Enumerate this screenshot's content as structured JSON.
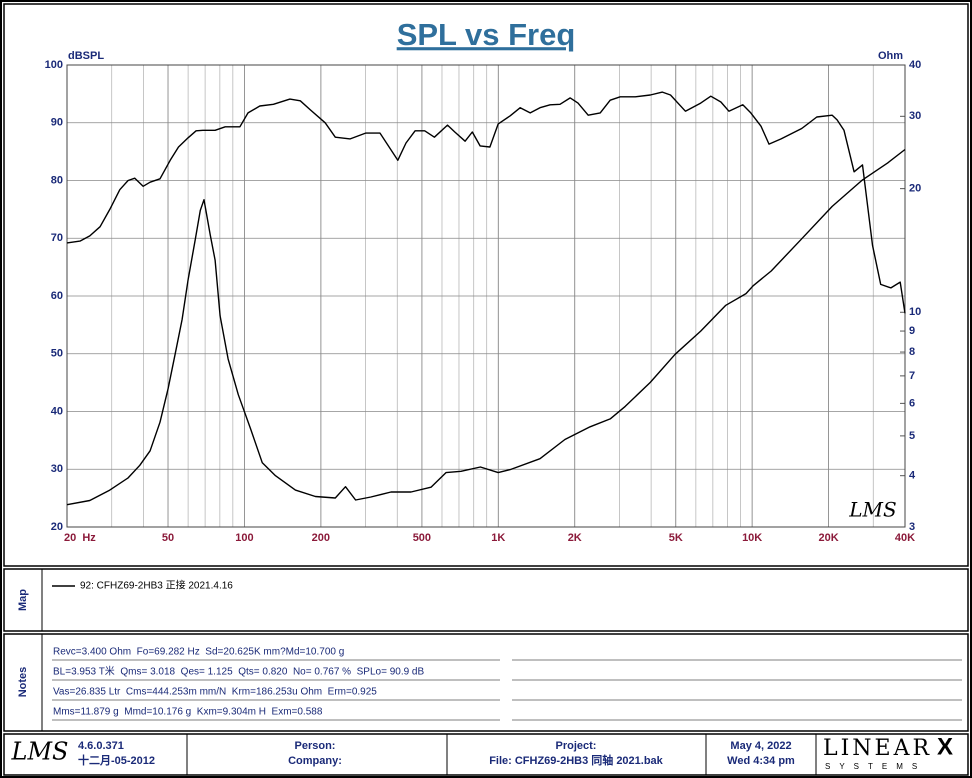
{
  "chart_data": {
    "type": "line",
    "title": "SPL vs Freq",
    "ylabel": "dBSPL",
    "y2label": "Ohm",
    "annotation": "LMS",
    "xscale": "log",
    "y2scale": "log",
    "grid": true,
    "xlim": [
      20,
      40000
    ],
    "xticks": [
      {
        "value": 20,
        "label": "20  Hz"
      },
      50,
      100,
      200,
      500,
      {
        "value": 1000,
        "label": "1K"
      },
      {
        "value": 2000,
        "label": "2K"
      },
      {
        "value": 5000,
        "label": "5K"
      },
      {
        "value": 10000,
        "label": "10K"
      },
      {
        "value": 20000,
        "label": "20K"
      },
      {
        "value": 40000,
        "label": "40K"
      }
    ],
    "ylim": [
      20,
      100
    ],
    "yticks": [
      20,
      30,
      40,
      50,
      60,
      70,
      80,
      90,
      100
    ],
    "y2lim": [
      3,
      40
    ],
    "y2ticks": [
      3,
      4,
      5,
      6,
      7,
      8,
      9,
      10,
      20,
      30,
      40
    ],
    "series": [
      {
        "color": "#000000",
        "axis": "y",
        "x": [
          20,
          22.5,
          24.6,
          27,
          29.5,
          32.3,
          34.8,
          37,
          39.9,
          42.5,
          46.5,
          51,
          55,
          60,
          64.5,
          68.6,
          76.6,
          84,
          96,
          103.3,
          115,
          130,
          151,
          166,
          182,
          208,
          228,
          261,
          300,
          342,
          402,
          433,
          470,
          513,
          560,
          631,
          674,
          740,
          790,
          848,
          927,
          999,
          1114,
          1220,
          1336,
          1460,
          1600,
          1750,
          1920,
          2060,
          2260,
          2520,
          2760,
          3020,
          3465,
          3970,
          4430,
          4770,
          5460,
          6270,
          6870,
          7530,
          8100,
          9190,
          9880,
          10830,
          11650,
          13000,
          15670,
          17980,
          20660,
          21600,
          23000,
          25200,
          27200,
          29800,
          32100,
          35200,
          38300,
          40000
        ],
        "values": [
          69.2,
          69.5,
          70.4,
          72,
          75,
          78.4,
          80,
          80.4,
          79,
          79.7,
          80.3,
          83.5,
          85.8,
          87.4,
          88.6,
          88.7,
          88.7,
          89.3,
          89.3,
          91.7,
          92.9,
          93.2,
          94.1,
          93.8,
          92.2,
          90,
          87.5,
          87.2,
          88.2,
          88.2,
          83.5,
          86.5,
          88.6,
          88.6,
          87.5,
          89.6,
          88.4,
          86.8,
          88.4,
          86,
          85.8,
          89.8,
          91.2,
          92.6,
          91.7,
          92.6,
          93.1,
          93.2,
          94.3,
          93.4,
          91.3,
          91.7,
          93.9,
          94.5,
          94.5,
          94.8,
          95.3,
          94.8,
          92,
          93.4,
          94.6,
          93.6,
          92,
          93.1,
          91.7,
          89.4,
          86.3,
          87.2,
          89,
          91,
          91.3,
          90.5,
          88.7,
          81.5,
          82.7,
          68.8,
          62,
          61.4,
          62.4,
          57
        ]
      },
      {
        "color": "#000000",
        "axis": "y2",
        "x": [
          20,
          24.6,
          29.5,
          34.8,
          38.7,
          42.5,
          46.5,
          50,
          53.3,
          56.8,
          60,
          64,
          67,
          69.3,
          73.4,
          76.6,
          80.2,
          86.2,
          94.6,
          105.7,
          117.6,
          132.5,
          158.7,
          190.3,
          228,
          250,
          274,
          315,
          378,
          453,
          543,
          622,
          713,
          850,
          999,
          1114,
          1460,
          1830,
          2300,
          2760,
          3160,
          3970,
          4970,
          6270,
          7870,
          9460,
          10090,
          11880,
          15670,
          20660,
          27200,
          34200,
          40000
        ],
        "values": [
          3.4,
          3.48,
          3.69,
          3.95,
          4.24,
          4.6,
          5.4,
          6.5,
          7.9,
          9.6,
          12.0,
          15.0,
          17.7,
          18.8,
          15.4,
          13.4,
          9.8,
          7.7,
          6.3,
          5.2,
          4.3,
          4.0,
          3.69,
          3.56,
          3.53,
          3.76,
          3.49,
          3.55,
          3.65,
          3.65,
          3.75,
          4.07,
          4.1,
          4.2,
          4.07,
          4.14,
          4.4,
          4.9,
          5.26,
          5.5,
          5.9,
          6.75,
          7.9,
          9.0,
          10.4,
          11.1,
          11.6,
          12.6,
          15.1,
          18.1,
          21.0,
          23.1,
          24.9
        ]
      }
    ]
  },
  "map": {
    "title": "Map",
    "entry": "92: CFHZ69-2HB3 正接 2021.4.16"
  },
  "notes": {
    "title": "Notes",
    "lines": [
      "Revc=3.400 Ohm  Fo=69.282 Hz  Sd=20.625K mm?Md=10.700 g",
      "BL=3.953 T米  Qms= 3.018  Qes= 1.125  Qts= 0.820  No= 0.767 %  SPLo= 90.9 dB",
      "Vas=26.835 Ltr  Cms=444.253m mm/N  Krm=186.253u Ohm  Erm=0.925",
      "Mms=11.879 g  Mmd=10.176 g  Kxm=9.304m H  Exm=0.588"
    ]
  },
  "footer": {
    "logo": "LMS",
    "version": "4.6.0.371",
    "build_date": "十二月-05-2012",
    "person": "Person:",
    "company": "Company:",
    "project": "Project:",
    "file": "File: CFHZ69-2HB3 同轴 2021.bak",
    "date": "May  4, 2022",
    "time": "Wed  4:34 pm",
    "brand": "LINEAR",
    "brand_mark": "X",
    "brand_sub": "SYSTEMS"
  }
}
